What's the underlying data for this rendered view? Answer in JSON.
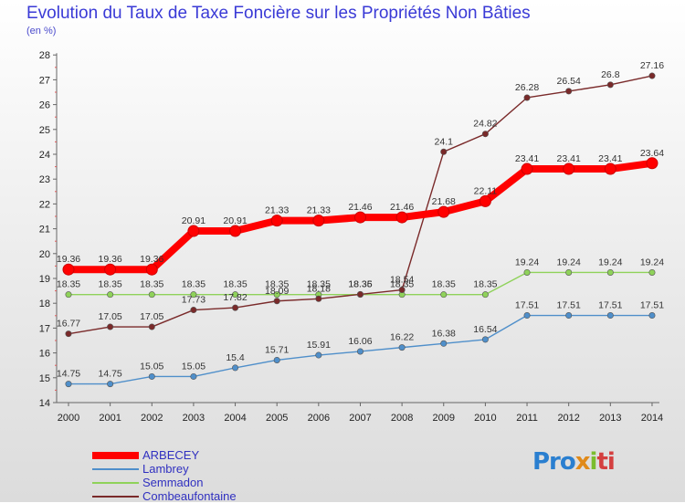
{
  "chart_data": {
    "type": "line",
    "title": "Evolution du Taux de Taxe Foncière sur les Propriétés Non Bâties",
    "subtitle": "(en %)",
    "x": [
      "2000",
      "2001",
      "2002",
      "2003",
      "2004",
      "2005",
      "2006",
      "2007",
      "2008",
      "2009",
      "2010",
      "2011",
      "2012",
      "2013",
      "2014"
    ],
    "ylim": [
      14,
      28
    ],
    "yticks": [
      14,
      15,
      16,
      17,
      18,
      19,
      20,
      21,
      22,
      23,
      24,
      25,
      26,
      27,
      28
    ],
    "grid": false,
    "legend_placement": "bottom-left",
    "series": [
      {
        "name": "ARBECEY",
        "color": "#ff0000",
        "emphasis": true,
        "values": [
          19.36,
          19.36,
          19.36,
          20.91,
          20.91,
          21.33,
          21.33,
          21.46,
          21.46,
          21.68,
          22.11,
          23.41,
          23.41,
          23.41,
          23.64
        ]
      },
      {
        "name": "Lambrey",
        "color": "#4f8fca",
        "values": [
          14.75,
          14.75,
          15.05,
          15.05,
          15.4,
          15.71,
          15.91,
          16.06,
          16.22,
          16.38,
          16.54,
          17.51,
          17.51,
          17.51,
          17.51
        ]
      },
      {
        "name": "Semmadon",
        "color": "#8fd25a",
        "values": [
          18.35,
          18.35,
          18.35,
          18.35,
          18.35,
          18.35,
          18.35,
          18.35,
          18.35,
          18.35,
          18.35,
          19.24,
          19.24,
          19.24,
          19.24
        ]
      },
      {
        "name": "Combeaufontaine",
        "color": "#7a2a2a",
        "values": [
          16.77,
          17.05,
          17.05,
          17.73,
          17.82,
          18.09,
          18.18,
          18.36,
          18.54,
          24.1,
          24.82,
          26.28,
          26.54,
          26.8,
          27.16
        ]
      }
    ]
  },
  "brand": {
    "p1": "Pro",
    "p2": "x",
    "p3": "i",
    "p4": "ti"
  }
}
